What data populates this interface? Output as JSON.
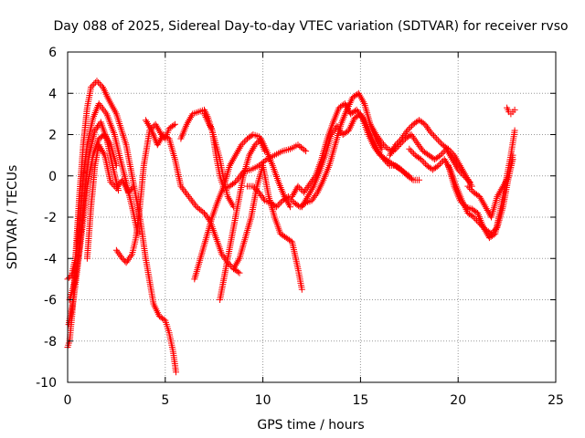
{
  "chart_data": {
    "type": "scatter",
    "title": "Day 088 of 2025, Sidereal Day-to-day VTEC variation (SDTVAR) for receiver rvso",
    "xlabel": "GPS time / hours",
    "ylabel": "SDTVAR / TECUs",
    "xlim": [
      0,
      25
    ],
    "ylim": [
      -10,
      6
    ],
    "xticks": [
      0,
      5,
      10,
      15,
      20,
      25
    ],
    "yticks": [
      -10,
      -8,
      -6,
      -4,
      -2,
      0,
      2,
      4,
      6
    ],
    "grid": true,
    "marker": "+",
    "color": "#ff0000",
    "tracks": [
      {
        "name": "track-1",
        "x": [
          0.0,
          0.1,
          0.25,
          0.4,
          0.6,
          0.8,
          1.0,
          1.2,
          1.5,
          1.8,
          2.1,
          2.5,
          3.0,
          3.4,
          3.7,
          4.0,
          4.4,
          4.7,
          5.0,
          5.2,
          5.4,
          5.55
        ],
        "y": [
          -8.3,
          -8.0,
          -6.5,
          -4.0,
          -1.0,
          1.5,
          3.3,
          4.3,
          4.6,
          4.3,
          3.7,
          3.0,
          1.5,
          -0.5,
          -2.0,
          -4.0,
          -6.2,
          -6.8,
          -7.0,
          -7.6,
          -8.5,
          -9.5
        ]
      },
      {
        "name": "track-2",
        "x": [
          0.0,
          0.2,
          0.4,
          0.6,
          0.8,
          1.0,
          1.3,
          1.6,
          2.0,
          2.4,
          2.7,
          3.0,
          3.3,
          3.6
        ],
        "y": [
          -5.0,
          -4.8,
          -4.0,
          -2.5,
          0.0,
          1.5,
          2.8,
          3.5,
          3.0,
          2.0,
          0.8,
          -0.3,
          -1.5,
          -2.8
        ]
      },
      {
        "name": "track-3",
        "x": [
          0.05,
          0.3,
          0.5,
          0.75,
          1.0,
          1.3,
          1.6,
          1.9,
          2.2,
          2.5
        ],
        "y": [
          -7.2,
          -6.0,
          -4.5,
          -2.5,
          -0.5,
          1.0,
          1.8,
          2.0,
          1.5,
          0.5
        ]
      },
      {
        "name": "track-4",
        "x": [
          0.1,
          0.35,
          0.6,
          0.85,
          1.1,
          1.4,
          1.7,
          2.0,
          2.3,
          2.6
        ],
        "y": [
          -6.0,
          -5.2,
          -3.5,
          -1.0,
          1.0,
          2.2,
          2.6,
          1.8,
          0.5,
          -0.7
        ]
      },
      {
        "name": "track-5",
        "x": [
          1.0,
          1.2,
          1.4,
          1.6,
          1.9,
          2.2,
          2.5,
          2.8,
          3.1,
          3.4
        ],
        "y": [
          -4.0,
          -1.5,
          0.5,
          1.5,
          1.0,
          -0.3,
          -0.6,
          -0.2,
          -0.8,
          -0.5
        ]
      },
      {
        "name": "track-6",
        "x": [
          2.5,
          2.8,
          3.0,
          3.3,
          3.5,
          3.7,
          3.9,
          4.2,
          4.5,
          4.8,
          5.0,
          5.2,
          5.5
        ],
        "y": [
          -3.6,
          -4.0,
          -4.2,
          -3.8,
          -3.0,
          -1.5,
          0.5,
          2.2,
          2.5,
          2.0,
          1.8,
          2.3,
          2.5
        ]
      },
      {
        "name": "track-7",
        "x": [
          4.0,
          4.3,
          4.6,
          4.9,
          5.2,
          5.5,
          5.8,
          6.2,
          6.6,
          7.0,
          7.3,
          7.6,
          7.9,
          8.2,
          8.5,
          8.8
        ],
        "y": [
          2.7,
          2.2,
          1.5,
          2.0,
          1.8,
          0.8,
          -0.5,
          -1.0,
          -1.5,
          -1.8,
          -2.2,
          -3.0,
          -3.8,
          -4.2,
          -4.5,
          -4.7
        ]
      },
      {
        "name": "track-8",
        "x": [
          5.8,
          6.1,
          6.4,
          6.7,
          7.0,
          7.2,
          7.4,
          7.6,
          7.8,
          8.0,
          8.2,
          8.5
        ],
        "y": [
          1.8,
          2.5,
          3.0,
          3.1,
          3.2,
          2.8,
          2.2,
          1.5,
          0.8,
          -0.2,
          -1.0,
          -1.5
        ]
      },
      {
        "name": "track-9",
        "x": [
          7.0,
          7.2,
          7.4,
          7.6,
          7.8,
          8.0,
          8.3,
          8.6,
          9.0,
          9.4,
          9.8,
          10.2,
          10.6,
          11.0,
          11.4,
          11.8,
          12.2
        ],
        "y": [
          3.0,
          2.6,
          2.2,
          1.0,
          0.0,
          -0.6,
          -0.5,
          -0.3,
          0.2,
          0.3,
          0.5,
          0.8,
          1.0,
          1.2,
          1.3,
          1.5,
          1.2
        ]
      },
      {
        "name": "track-10",
        "x": [
          6.5,
          6.8,
          7.1,
          7.4,
          7.7,
          8.0,
          8.3,
          8.6,
          8.9,
          9.2,
          9.5,
          9.8,
          10.1
        ],
        "y": [
          -5.0,
          -4.0,
          -3.0,
          -2.0,
          -1.2,
          -0.5,
          0.5,
          1.0,
          1.5,
          1.8,
          2.0,
          1.9,
          1.2
        ]
      },
      {
        "name": "track-11",
        "x": [
          7.8,
          8.1,
          8.4,
          8.7,
          9.0,
          9.3,
          9.6,
          9.9,
          10.2,
          10.5,
          10.8,
          11.1,
          11.4
        ],
        "y": [
          -6.0,
          -4.5,
          -3.0,
          -1.5,
          0.0,
          1.0,
          1.5,
          1.8,
          1.2,
          0.5,
          -0.3,
          -1.0,
          -1.5
        ]
      },
      {
        "name": "track-12",
        "x": [
          8.5,
          8.8,
          9.1,
          9.4,
          9.7,
          10.0,
          10.3,
          10.6,
          10.9,
          11.2,
          11.5,
          11.8,
          12.0
        ],
        "y": [
          -4.5,
          -4.0,
          -3.0,
          -2.0,
          -0.5,
          0.5,
          -1.0,
          -2.0,
          -2.8,
          -3.0,
          -3.2,
          -4.5,
          -5.5
        ]
      },
      {
        "name": "track-13",
        "x": [
          9.2,
          9.5,
          9.8,
          10.1,
          10.4,
          10.7,
          11.0,
          11.3,
          11.6,
          11.9,
          12.2,
          12.5,
          12.8,
          13.1,
          13.4,
          13.7,
          14.0,
          14.3,
          14.6,
          14.9,
          15.2,
          15.5,
          15.8,
          16.1
        ],
        "y": [
          -0.5,
          -0.5,
          -0.8,
          -1.2,
          -1.3,
          -1.5,
          -1.2,
          -1.0,
          -1.3,
          -1.5,
          -1.3,
          -1.2,
          -0.8,
          -0.2,
          0.5,
          1.5,
          2.5,
          3.2,
          3.8,
          4.0,
          3.5,
          2.5,
          1.8,
          1.3
        ]
      },
      {
        "name": "track-14",
        "x": [
          11.5,
          11.8,
          12.1,
          12.4,
          12.7,
          13.0,
          13.3,
          13.6,
          13.9,
          14.2,
          14.5,
          14.8,
          15.1,
          15.4,
          15.7,
          16.0,
          16.3,
          16.6,
          16.9,
          17.2,
          17.5
        ],
        "y": [
          -1.0,
          -0.5,
          -0.8,
          -0.4,
          0.0,
          0.8,
          1.8,
          2.6,
          3.3,
          3.5,
          3.0,
          3.2,
          2.8,
          2.0,
          1.4,
          1.0,
          0.8,
          0.6,
          0.4,
          0.2,
          0.0
        ]
      },
      {
        "name": "track-15",
        "x": [
          12.0,
          12.3,
          12.6,
          12.9,
          13.2,
          13.5,
          13.8,
          14.1,
          14.4,
          14.7,
          15.0,
          15.3,
          15.6,
          15.9,
          16.2,
          16.5,
          16.8,
          17.1,
          17.4,
          17.7,
          18.0
        ],
        "y": [
          -1.5,
          -1.0,
          -0.5,
          0.2,
          1.0,
          2.0,
          2.4,
          2.0,
          2.2,
          2.8,
          3.0,
          2.5,
          1.8,
          1.2,
          0.8,
          0.5,
          0.5,
          0.3,
          0.0,
          -0.2,
          -0.2
        ]
      },
      {
        "name": "track-16",
        "x": [
          15.5,
          15.8,
          16.1,
          16.4,
          16.7,
          17.0,
          17.3,
          17.6,
          17.9,
          18.2,
          18.5,
          18.8,
          19.1,
          19.4,
          19.7,
          20.0,
          20.3,
          20.6
        ],
        "y": [
          2.5,
          2.0,
          1.6,
          1.3,
          1.2,
          1.5,
          1.8,
          2.0,
          1.6,
          1.2,
          1.0,
          0.8,
          1.0,
          1.3,
          0.8,
          0.3,
          0.0,
          -0.3
        ]
      },
      {
        "name": "track-17",
        "x": [
          16.5,
          16.8,
          17.1,
          17.4,
          17.7,
          18.0,
          18.3,
          18.6,
          18.9,
          19.2,
          19.5,
          19.8,
          20.1,
          20.4,
          20.7
        ],
        "y": [
          1.0,
          1.5,
          1.8,
          2.2,
          2.5,
          2.7,
          2.5,
          2.1,
          1.8,
          1.5,
          1.3,
          1.0,
          0.5,
          0.0,
          -0.5
        ]
      },
      {
        "name": "track-18",
        "x": [
          17.5,
          17.8,
          18.1,
          18.4,
          18.7,
          19.0,
          19.3,
          19.6,
          19.9,
          20.2,
          20.5,
          20.8,
          21.1,
          21.4,
          21.7,
          22.0,
          22.3,
          22.6,
          22.8
        ],
        "y": [
          1.3,
          1.0,
          0.8,
          0.5,
          0.3,
          0.5,
          0.8,
          0.3,
          -0.5,
          -1.2,
          -1.8,
          -2.0,
          -2.3,
          -2.6,
          -2.8,
          -2.5,
          -1.5,
          0.0,
          1.0
        ]
      },
      {
        "name": "track-19",
        "x": [
          19.5,
          19.8,
          20.1,
          20.4,
          20.7,
          21.0,
          21.3,
          21.6,
          21.9,
          22.2,
          22.5,
          22.7,
          22.9
        ],
        "y": [
          0.5,
          -0.5,
          -1.2,
          -1.5,
          -1.6,
          -1.8,
          -2.5,
          -3.0,
          -2.8,
          -1.5,
          0.0,
          1.0,
          2.2
        ]
      },
      {
        "name": "track-20",
        "x": [
          20.5,
          20.8,
          21.1,
          21.4,
          21.7,
          22.0,
          22.3,
          22.6,
          22.8
        ],
        "y": [
          -0.5,
          -0.8,
          -1.0,
          -1.5,
          -2.0,
          -1.0,
          -0.5,
          0.0,
          0.8
        ]
      },
      {
        "name": "track-21",
        "x": [
          22.5,
          22.6,
          22.7,
          22.8,
          22.9
        ],
        "y": [
          3.3,
          3.1,
          3.0,
          3.1,
          3.2
        ]
      }
    ]
  }
}
